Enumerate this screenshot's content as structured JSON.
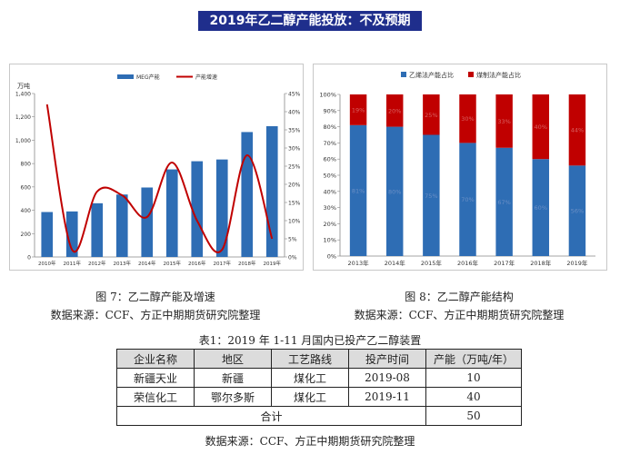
{
  "banner": "2019年乙二醇产能投放：不及预期",
  "chart1": {
    "caption": "图 7：乙二醇产能及增速",
    "source": "数据来源：CCF、方正中期期货研究院整理",
    "legend": [
      "MEG产能",
      "产能增速"
    ],
    "left_unit": "万吨"
  },
  "chart2": {
    "caption": "图 8：乙二醇产能结构",
    "source": "数据来源：CCF、方正中期期货研究院整理",
    "legend": [
      "乙烯法产能占比",
      "煤制法产能占比"
    ]
  },
  "table": {
    "title": "表1：2019 年 1-11 月国内已投产乙二醇装置",
    "headers": [
      "企业名称",
      "地区",
      "工艺路线",
      "投产时间",
      "产能（万吨/年）"
    ],
    "rows": [
      [
        "新疆天业",
        "新疆",
        "煤化工",
        "2019-08",
        "10"
      ],
      [
        "荣信化工",
        "鄂尔多斯",
        "煤化工",
        "2019-11",
        "40"
      ]
    ],
    "total_label": "合计",
    "total_value": "50",
    "source": "数据来源：CCF、方正中期期货研究院整理"
  },
  "colors": {
    "blue": "#2e6db4",
    "red": "#c00000",
    "banner_bg": "#1f2e8c"
  },
  "chart_data": [
    {
      "type": "bar",
      "title": "",
      "categories": [
        "2010年",
        "2011年",
        "2012年",
        "2013年",
        "2014年",
        "2015年",
        "2016年",
        "2017年",
        "2018年",
        "2019年"
      ],
      "series": [
        {
          "name": "MEG产能",
          "axis": "left",
          "type": "bar",
          "values": [
            385,
            390,
            460,
            535,
            595,
            750,
            820,
            835,
            1070,
            1120
          ]
        },
        {
          "name": "产能增速",
          "axis": "right",
          "type": "line",
          "values": [
            0.42,
            0.02,
            0.18,
            0.17,
            0.11,
            0.26,
            0.1,
            0.02,
            0.28,
            0.05
          ]
        }
      ],
      "ylabel": "万吨",
      "ylim": [
        0,
        1400
      ],
      "yticks": [
        "0",
        "200",
        "400",
        "600",
        "800",
        "1,000",
        "1,200",
        "1,400"
      ],
      "y2lim": [
        0,
        0.45
      ],
      "y2ticks": [
        "0%",
        "5%",
        "10%",
        "15%",
        "20%",
        "25%",
        "30%",
        "35%",
        "40%",
        "45%"
      ],
      "legend_position": "top-right",
      "grid": false
    },
    {
      "type": "bar",
      "stacked": true,
      "title": "",
      "categories": [
        "2013年",
        "2014年",
        "2015年",
        "2016年",
        "2017年",
        "2018年",
        "2019年"
      ],
      "series": [
        {
          "name": "乙烯法产能占比",
          "values": [
            81,
            80,
            75,
            70,
            67,
            60,
            56
          ],
          "labels": [
            "81%",
            "80%",
            "75%",
            "70%",
            "67%",
            "60%",
            "56%"
          ]
        },
        {
          "name": "煤制法产能占比",
          "values": [
            19,
            20,
            25,
            30,
            33,
            40,
            44
          ],
          "labels": [
            "19%",
            "20%",
            "25%",
            "30%",
            "33%",
            "40%",
            "44%"
          ]
        }
      ],
      "ylim": [
        0,
        100
      ],
      "yticks": [
        "0%",
        "10%",
        "20%",
        "30%",
        "40%",
        "50%",
        "60%",
        "70%",
        "80%",
        "90%",
        "100%"
      ],
      "legend_position": "top-left",
      "grid": false
    }
  ]
}
